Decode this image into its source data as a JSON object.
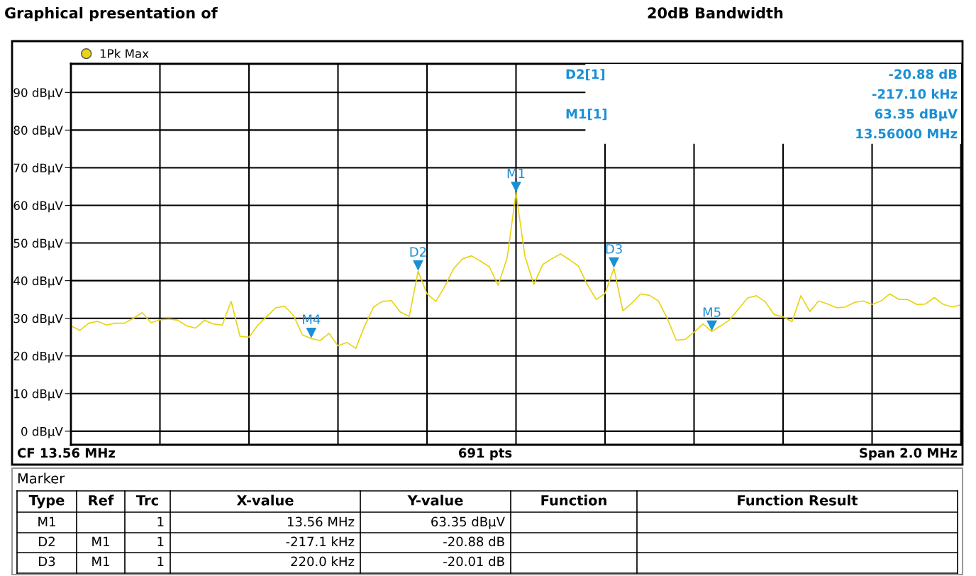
{
  "chart_data": [
    {
      "type": "line",
      "title": "Graphical presentation of",
      "subtitle": "20dB Bandwidth",
      "legend": "top left",
      "grid": true,
      "marker": "none",
      "line_style": "solid",
      "categories": [
        null,
        null,
        null,
        null,
        null,
        null,
        null,
        null,
        null,
        null,
        null,
        null,
        null,
        null,
        null,
        null,
        null,
        null,
        null,
        null,
        null,
        null,
        null,
        null,
        null,
        null,
        null,
        null,
        null,
        null,
        null,
        null,
        null,
        null,
        null,
        null,
        null,
        null,
        null,
        null,
        null,
        null,
        null,
        null,
        null,
        null,
        null,
        null,
        null,
        null,
        null,
        null,
        null,
        null,
        null,
        null,
        null,
        null,
        null,
        null,
        null,
        null,
        null,
        null,
        null,
        null,
        null,
        null,
        null,
        null,
        null,
        null,
        null,
        null,
        null,
        null,
        null,
        null,
        null,
        null,
        null,
        null,
        null,
        null,
        null,
        null,
        null,
        null,
        null,
        null,
        null,
        null,
        null,
        null,
        null,
        null,
        null,
        null,
        null,
        null,
        null
      ],
      "ylim": [
        -3.6,
        97.6
      ],
      "yticks": [
        {
          "value": 0,
          "label": "0 dBµV"
        },
        {
          "value": 10,
          "label": "10 dBµV"
        },
        {
          "value": 20,
          "label": "20 dBµV"
        },
        {
          "value": 30,
          "label": "30 dBµV"
        },
        {
          "value": 40,
          "label": "40 dBµV"
        },
        {
          "value": 50,
          "label": "50 dBµV"
        },
        {
          "value": 60,
          "label": "60 dBµV"
        },
        {
          "value": 70,
          "label": "70 dBµV"
        },
        {
          "value": 80,
          "label": "80 dBµV"
        },
        {
          "value": 90,
          "label": "90 dBµV"
        }
      ],
      "series": [
        {
          "name": "1Pk Max",
          "color": "#e8d414",
          "values": [
            28.0,
            26.8,
            28.7,
            29.2,
            28.2,
            28.7,
            28.7,
            30.0,
            31.5,
            28.8,
            29.6,
            29.8,
            29.5,
            28.0,
            27.4,
            29.5,
            28.5,
            28.2,
            34.5,
            25.2,
            25.0,
            28.2,
            30.5,
            32.8,
            33.2,
            30.8,
            25.6,
            24.6,
            24.1,
            26.0,
            22.7,
            23.6,
            22.0,
            28.0,
            33.0,
            34.5,
            34.7,
            31.7,
            30.5,
            42.5,
            36.5,
            34.5,
            38.5,
            43.2,
            45.8,
            46.6,
            45.2,
            43.7,
            38.8,
            46.0,
            63.35,
            46.5,
            39.0,
            44.3,
            45.8,
            47.1,
            45.6,
            43.9,
            39.0,
            35.0,
            36.6,
            43.3,
            32.0,
            34.0,
            36.5,
            36.1,
            34.6,
            29.9,
            24.2,
            24.4,
            26.3,
            28.5,
            26.5,
            28.0,
            29.6,
            32.5,
            35.4,
            36.0,
            34.4,
            31.0,
            30.4,
            29.1,
            36.0,
            31.8,
            34.6,
            33.8,
            32.8,
            33.0,
            34.2,
            34.6,
            33.7,
            34.6,
            36.5,
            35.0,
            35.0,
            33.7,
            33.8,
            35.5,
            33.7,
            33.0,
            33.6
          ]
        }
      ],
      "annotations": [
        {
          "text": "M1",
          "y": 63.35
        },
        {
          "text": "D2",
          "y": 42.5
        },
        {
          "text": "D3",
          "y": 43.3
        },
        {
          "text": "M4",
          "y": 24.6
        },
        {
          "text": "M5",
          "y": 26.5
        },
        "D2[1]",
        "-20.88 dB",
        "-217.10 kHz",
        "M1[1]",
        "63.35 dBµV",
        "13.56000 MHz",
        "CF 13.56 MHz",
        "691 pts",
        "Span 2.0 MHz"
      ]
    },
    {
      "type": "other",
      "title": "Marker",
      "categories": [
        "Type",
        "Ref",
        "Trc",
        "X-value",
        "Y-value",
        "Function",
        "Function Result"
      ],
      "y_categories": [
        "M1",
        "D2",
        "D3"
      ],
      "cell_labels": [
        [
          null,
          "1",
          "13.56 MHz",
          "63.35 dBµV",
          null,
          null
        ],
        [
          "M1",
          "1",
          "-217.1 kHz",
          "-20.88 dB",
          null,
          null
        ],
        [
          "M1",
          "1",
          "220.0 kHz",
          "-20.01 dB",
          null,
          null
        ]
      ]
    }
  ]
}
